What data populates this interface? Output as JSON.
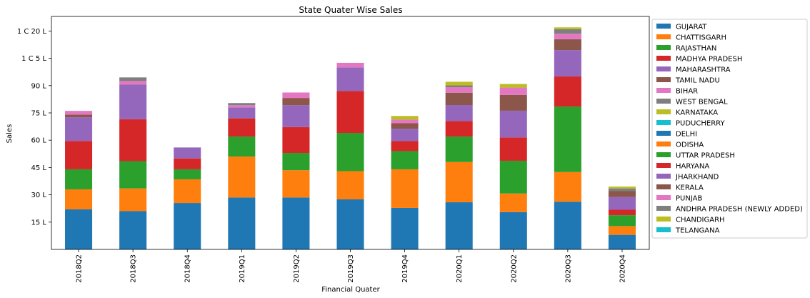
{
  "chart_data": {
    "type": "bar",
    "stacked": true,
    "title": "State Quater Wise Sales",
    "xlabel": "Financial Quater",
    "ylabel": "Sales",
    "ylim": [
      0,
      12800000
    ],
    "yticks": [
      {
        "value": 1500000,
        "label": "15 L"
      },
      {
        "value": 3000000,
        "label": "30 L"
      },
      {
        "value": 4500000,
        "label": "45 L"
      },
      {
        "value": 6000000,
        "label": "60 L"
      },
      {
        "value": 7500000,
        "label": "75 L"
      },
      {
        "value": 9000000,
        "label": "90 L"
      },
      {
        "value": 10500000,
        "label": "1 C 5 L"
      },
      {
        "value": 12000000,
        "label": "1 C 20 L"
      }
    ],
    "categories": [
      "2018Q2",
      "2018Q3",
      "2018Q4",
      "2019Q1",
      "2019Q2",
      "2019Q3",
      "2019Q4",
      "2020Q1",
      "2020Q2",
      "2020Q3",
      "2020Q4"
    ],
    "legend_position": "outside-right",
    "series": [
      {
        "name": "GUJARAT",
        "color": "#1f77b4",
        "values": [
          2200000,
          2100000,
          2550000,
          2850000,
          2850000,
          2750000,
          2280000,
          2590000,
          2050000,
          2620000,
          800000
        ]
      },
      {
        "name": "CHATTISGARH",
        "color": "#ff7f0e",
        "values": [
          1100000,
          1250000,
          1300000,
          2250000,
          1500000,
          1550000,
          2120000,
          2210000,
          1020000,
          1630000,
          480000
        ]
      },
      {
        "name": "RAJASTHAN",
        "color": "#2ca02c",
        "values": [
          1100000,
          1500000,
          550000,
          1100000,
          950000,
          2100000,
          1000000,
          1400000,
          1800000,
          3600000,
          600000
        ]
      },
      {
        "name": "MADHYA PRADESH",
        "color": "#d62728",
        "values": [
          1560000,
          2300000,
          600000,
          1000000,
          1420000,
          2300000,
          550000,
          850000,
          1280000,
          1650000,
          300000
        ]
      },
      {
        "name": "MAHARASHTRA",
        "color": "#9467bd",
        "values": [
          1300000,
          1900000,
          600000,
          600000,
          1200000,
          1300000,
          680000,
          880000,
          1470000,
          1450000,
          700000
        ]
      },
      {
        "name": "TAMIL NADU",
        "color": "#8c564b",
        "values": [
          150000,
          0,
          0,
          0,
          400000,
          0,
          300000,
          680000,
          870000,
          600000,
          320000
        ]
      },
      {
        "name": "BIHAR",
        "color": "#e377c2",
        "values": [
          200000,
          200000,
          0,
          120000,
          300000,
          250000,
          200000,
          300000,
          400000,
          300000,
          0
        ]
      },
      {
        "name": "WEST BENGAL",
        "color": "#7f7f7f",
        "values": [
          0,
          200000,
          0,
          120000,
          0,
          0,
          0,
          100000,
          0,
          250000,
          150000
        ]
      },
      {
        "name": "KARNATAKA",
        "color": "#bcbd22",
        "values": [
          0,
          0,
          0,
          0,
          0,
          0,
          200000,
          200000,
          200000,
          100000,
          100000
        ]
      },
      {
        "name": "PUDUCHERRY",
        "color": "#17becf",
        "values": [
          0,
          0,
          0,
          0,
          0,
          0,
          0,
          0,
          0,
          0,
          0
        ]
      },
      {
        "name": "DELHI",
        "color": "#1f77b4",
        "values": [
          0,
          0,
          0,
          0,
          0,
          0,
          0,
          0,
          0,
          0,
          0
        ]
      },
      {
        "name": "ODISHA",
        "color": "#ff7f0e",
        "values": [
          0,
          0,
          0,
          0,
          0,
          0,
          0,
          0,
          0,
          0,
          0
        ]
      },
      {
        "name": "UTTAR PRADESH",
        "color": "#2ca02c",
        "values": [
          0,
          0,
          0,
          0,
          0,
          0,
          0,
          0,
          0,
          0,
          0
        ]
      },
      {
        "name": "HARYANA",
        "color": "#d62728",
        "values": [
          0,
          0,
          0,
          0,
          0,
          0,
          0,
          0,
          0,
          0,
          0
        ]
      },
      {
        "name": "JHARKHAND",
        "color": "#9467bd",
        "values": [
          0,
          0,
          0,
          0,
          0,
          0,
          0,
          0,
          0,
          0,
          0
        ]
      },
      {
        "name": "KERALA",
        "color": "#8c564b",
        "values": [
          0,
          0,
          0,
          0,
          0,
          0,
          0,
          0,
          0,
          0,
          0
        ]
      },
      {
        "name": "PUNJAB",
        "color": "#e377c2",
        "values": [
          0,
          0,
          0,
          0,
          0,
          0,
          0,
          0,
          0,
          0,
          0
        ]
      },
      {
        "name": "ANDHRA PRADESH (NEWLY ADDED)",
        "color": "#7f7f7f",
        "values": [
          0,
          0,
          0,
          0,
          0,
          0,
          0,
          0,
          0,
          0,
          0
        ]
      },
      {
        "name": "CHANDIGARH",
        "color": "#bcbd22",
        "values": [
          0,
          0,
          0,
          0,
          0,
          0,
          0,
          0,
          0,
          0,
          0
        ]
      },
      {
        "name": "TELANGANA",
        "color": "#17becf",
        "values": [
          0,
          0,
          0,
          0,
          0,
          0,
          0,
          0,
          0,
          0,
          0
        ]
      }
    ]
  }
}
